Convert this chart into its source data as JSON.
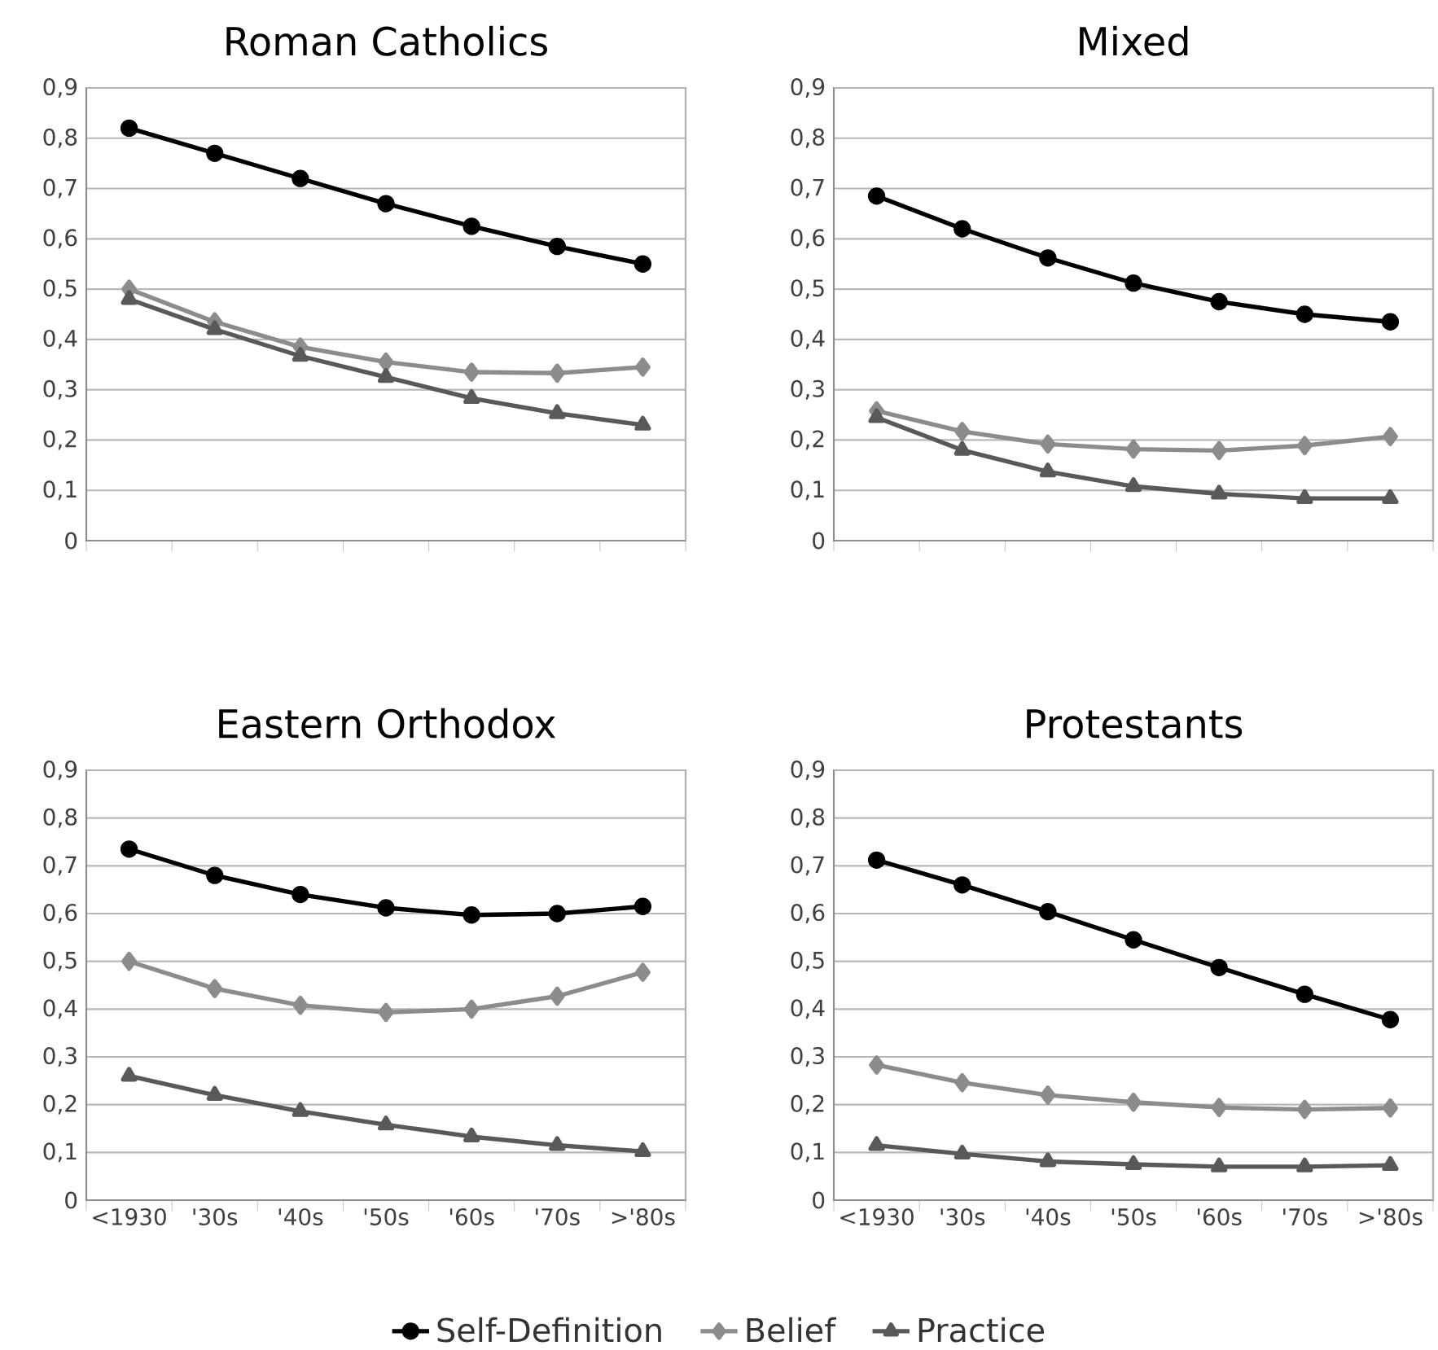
{
  "chart_data": [
    {
      "type": "line",
      "title": "Roman Catholics",
      "categories": [
        null,
        null,
        null,
        null,
        null,
        null,
        null
      ],
      "ylim": [
        0,
        0.9
      ],
      "yticks": [
        0,
        {
          "value": 0.1,
          "label": "0,1"
        },
        {
          "value": 0.2,
          "label": "0,2"
        },
        {
          "value": 0.3,
          "label": "0,3"
        },
        {
          "value": 0.4,
          "label": "0,4"
        },
        {
          "value": 0.5,
          "label": "0,5"
        },
        {
          "value": 0.6,
          "label": "0,6"
        },
        {
          "value": 0.7,
          "label": "0,7"
        },
        {
          "value": 0.8,
          "label": "0,8"
        },
        {
          "value": 0.9,
          "label": "0,9"
        }
      ],
      "grid": "y",
      "legend": false,
      "tick_labels": "y",
      "series": [
        {
          "color": "#000000",
          "marker": "circle",
          "values": [
            0.82,
            0.77,
            0.72,
            0.67,
            0.625,
            0.585,
            0.55
          ]
        },
        {
          "color": "#8c8c8c",
          "marker": "diamond",
          "values": [
            0.5,
            0.435,
            0.385,
            0.355,
            0.335,
            0.333,
            0.345
          ]
        },
        {
          "color": "#595959",
          "marker": "triangle",
          "values": [
            0.48,
            0.42,
            0.367,
            0.325,
            0.283,
            0.253,
            0.23
          ]
        }
      ]
    },
    {
      "type": "line",
      "title": "Mixed",
      "categories": [
        null,
        null,
        null,
        null,
        null,
        null,
        null
      ],
      "ylim": [
        0,
        0.9
      ],
      "yticks": [
        0,
        {
          "value": 0.1,
          "label": "0,1"
        },
        {
          "value": 0.2,
          "label": "0,2"
        },
        {
          "value": 0.3,
          "label": "0,3"
        },
        {
          "value": 0.4,
          "label": "0,4"
        },
        {
          "value": 0.5,
          "label": "0,5"
        },
        {
          "value": 0.6,
          "label": "0,6"
        },
        {
          "value": 0.7,
          "label": "0,7"
        },
        {
          "value": 0.8,
          "label": "0,8"
        },
        {
          "value": 0.9,
          "label": "0,9"
        }
      ],
      "grid": "y",
      "legend": false,
      "tick_labels": "y",
      "series": [
        {
          "color": "#000000",
          "marker": "circle",
          "values": [
            0.685,
            0.62,
            0.562,
            0.512,
            0.475,
            0.45,
            0.435
          ]
        },
        {
          "color": "#8c8c8c",
          "marker": "diamond",
          "values": [
            0.258,
            0.217,
            0.192,
            0.182,
            0.179,
            0.189,
            0.207
          ]
        },
        {
          "color": "#595959",
          "marker": "triangle",
          "values": [
            0.245,
            0.18,
            0.137,
            0.108,
            0.093,
            0.084,
            0.084
          ]
        }
      ]
    },
    {
      "type": "line",
      "title": "Eastern Orthodox",
      "categories": [
        "<1930",
        "'30s",
        "'40s",
        "'50s",
        "'60s",
        "'70s",
        ">'80s"
      ],
      "ylim": [
        0,
        0.9
      ],
      "yticks": [
        0,
        {
          "value": 0.1,
          "label": "0,1"
        },
        {
          "value": 0.2,
          "label": "0,2"
        },
        {
          "value": 0.3,
          "label": "0,3"
        },
        {
          "value": 0.4,
          "label": "0,4"
        },
        {
          "value": 0.5,
          "label": "0,5"
        },
        {
          "value": 0.6,
          "label": "0,6"
        },
        {
          "value": 0.7,
          "label": "0,7"
        },
        {
          "value": 0.8,
          "label": "0,8"
        },
        {
          "value": 0.9,
          "label": "0,9"
        }
      ],
      "grid": "y",
      "legend": false,
      "series": [
        {
          "color": "#000000",
          "marker": "circle",
          "values": [
            0.735,
            0.68,
            0.64,
            0.612,
            0.597,
            0.6,
            0.615
          ]
        },
        {
          "color": "#8c8c8c",
          "marker": "diamond",
          "values": [
            0.5,
            0.443,
            0.408,
            0.393,
            0.4,
            0.427,
            0.477
          ]
        },
        {
          "color": "#595959",
          "marker": "triangle",
          "values": [
            0.26,
            0.22,
            0.186,
            0.158,
            0.133,
            0.115,
            0.102
          ]
        }
      ]
    },
    {
      "type": "line",
      "title": "Protestants",
      "categories": [
        "<1930",
        "'30s",
        "'40s",
        "'50s",
        "'60s",
        "'70s",
        ">'80s"
      ],
      "ylim": [
        0,
        0.9
      ],
      "yticks": [
        0,
        {
          "value": 0.1,
          "label": "0,1"
        },
        {
          "value": 0.2,
          "label": "0,2"
        },
        {
          "value": 0.3,
          "label": "0,3"
        },
        {
          "value": 0.4,
          "label": "0,4"
        },
        {
          "value": 0.5,
          "label": "0,5"
        },
        {
          "value": 0.6,
          "label": "0,6"
        },
        {
          "value": 0.7,
          "label": "0,7"
        },
        {
          "value": 0.8,
          "label": "0,8"
        },
        {
          "value": 0.9,
          "label": "0,9"
        }
      ],
      "grid": "y",
      "legend": "bottom",
      "series": [
        {
          "name": "Self-Definition",
          "color": "#000000",
          "marker": "circle",
          "values": [
            0.712,
            0.66,
            0.604,
            0.545,
            0.487,
            0.431,
            0.378
          ]
        },
        {
          "name": "Belief",
          "color": "#8c8c8c",
          "marker": "diamond",
          "values": [
            0.283,
            0.246,
            0.22,
            0.205,
            0.194,
            0.19,
            0.193
          ]
        },
        {
          "name": "Practice",
          "color": "#595959",
          "marker": "triangle",
          "values": [
            0.115,
            0.097,
            0.081,
            0.075,
            0.07,
            0.07,
            0.073
          ]
        }
      ]
    }
  ]
}
